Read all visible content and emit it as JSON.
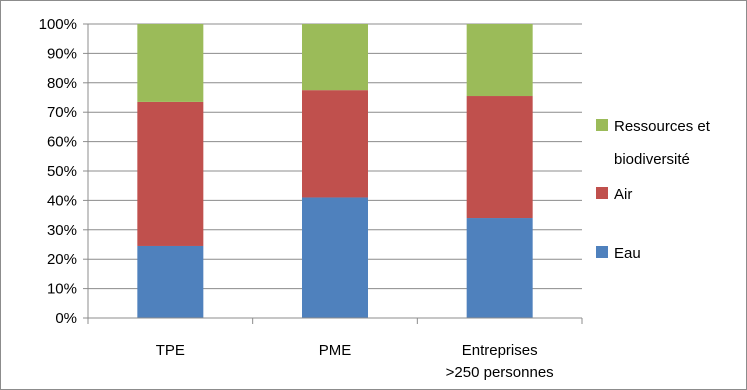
{
  "chart_data": {
    "type": "bar",
    "stacked": true,
    "percent": true,
    "categories": [
      [
        "TPE"
      ],
      [
        "PME"
      ],
      [
        "Entreprises",
        ">250 personnes"
      ]
    ],
    "series": [
      {
        "name": "Eau",
        "values": [
          24.5,
          41,
          34
        ],
        "color": "#4f81bd"
      },
      {
        "name": "Air",
        "values": [
          49,
          36.5,
          41.5
        ],
        "color": "#c0504d"
      },
      {
        "name": "Ressources et biodiversité",
        "values": [
          26.5,
          22.5,
          24.5
        ],
        "color": "#9bbb59"
      }
    ],
    "y_ticks": [
      "0%",
      "10%",
      "20%",
      "30%",
      "40%",
      "50%",
      "60%",
      "70%",
      "80%",
      "90%",
      "100%"
    ],
    "ylim": [
      0,
      100
    ],
    "grid": true,
    "legend": {
      "position": "right",
      "order": [
        "Ressources et biodiversité",
        "Air",
        "Eau"
      ],
      "lines": [
        [
          "Ressources et",
          "biodiversité"
        ],
        [
          "Air"
        ],
        [
          "Eau"
        ]
      ]
    }
  }
}
